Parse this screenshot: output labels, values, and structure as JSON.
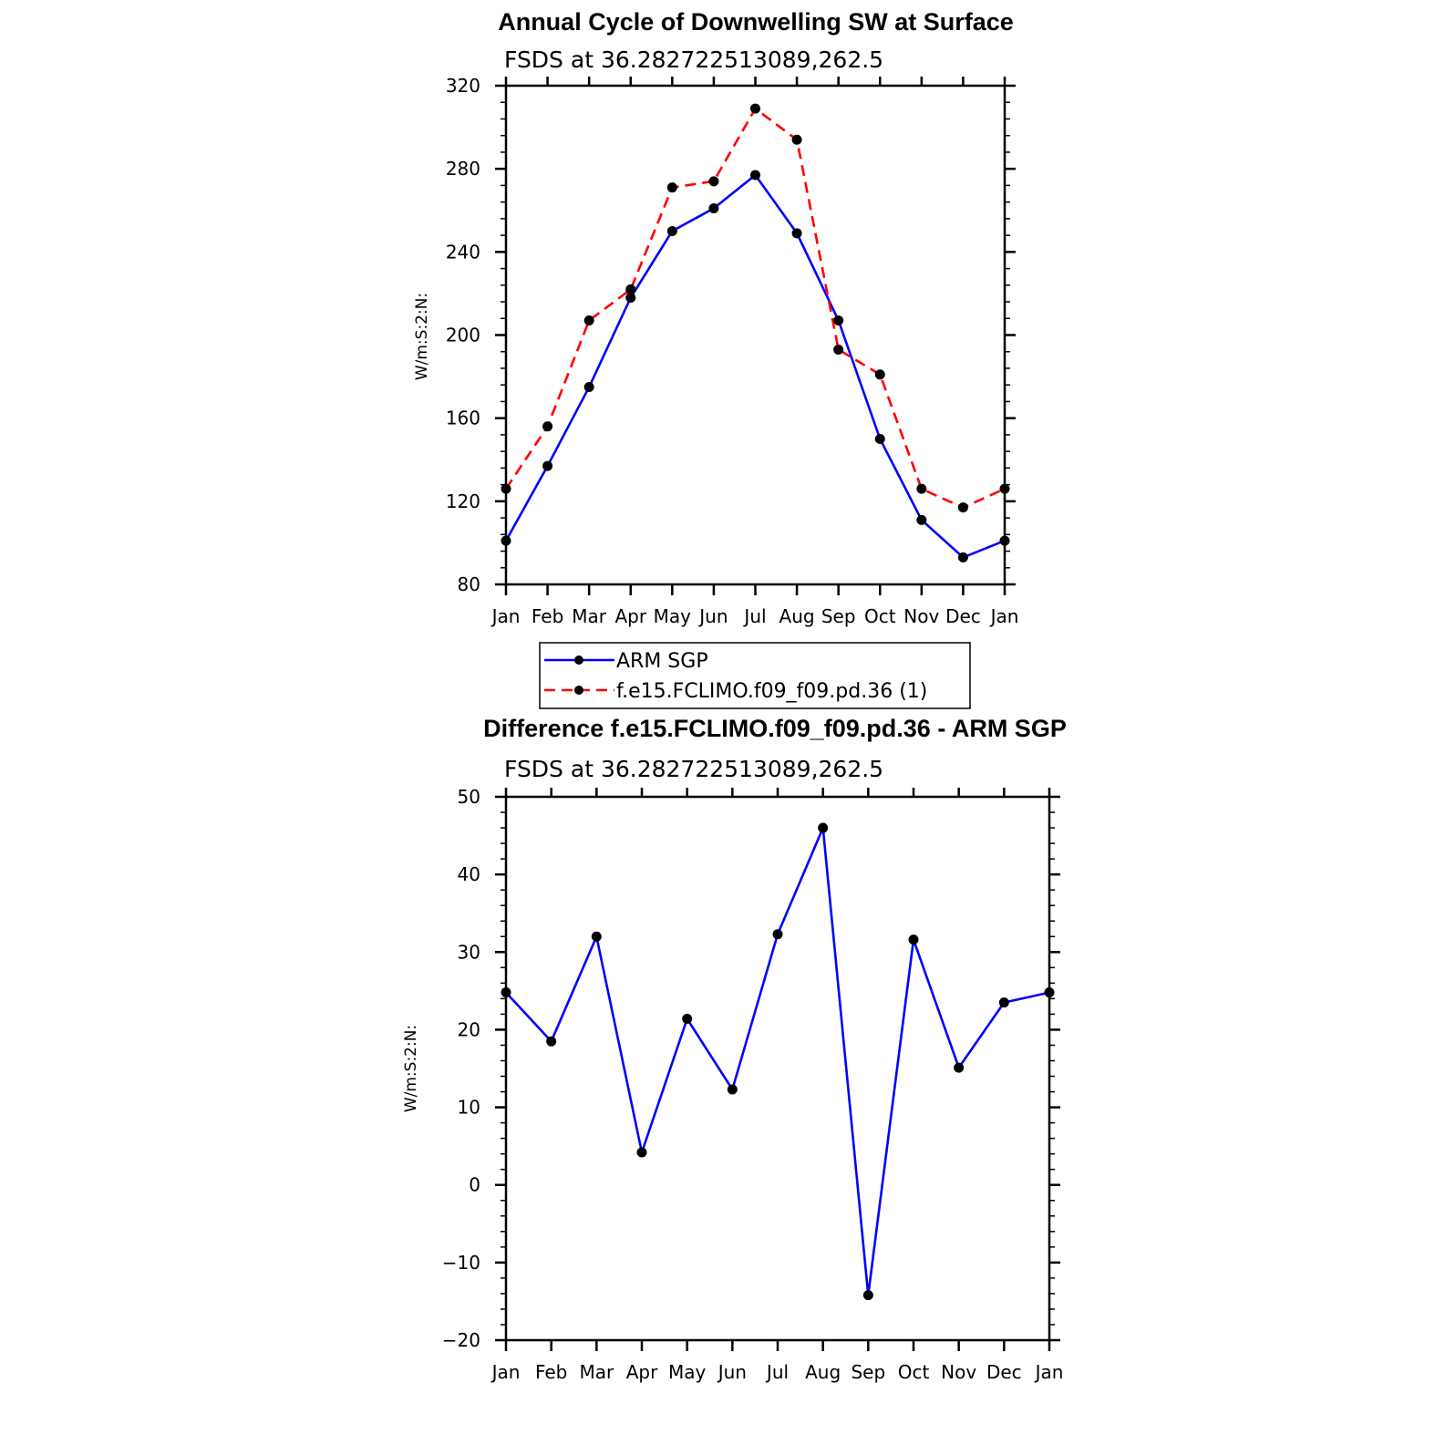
{
  "chart_data": [
    {
      "type": "line",
      "title": "Annual Cycle of Downwelling SW at Surface",
      "subtitle": "FSDS at 36.282722513089,262.5",
      "xlabel": "",
      "ylabel": "W/m:S:2:N:",
      "categories": [
        "Jan",
        "Feb",
        "Mar",
        "Apr",
        "May",
        "Jun",
        "Jul",
        "Aug",
        "Sep",
        "Oct",
        "Nov",
        "Dec",
        "Jan"
      ],
      "ylim": [
        80,
        320
      ],
      "yticks": [
        80,
        120,
        160,
        200,
        240,
        280,
        320
      ],
      "grid": false,
      "legend_position": "bottom",
      "series": [
        {
          "name": "ARM SGP",
          "color": "#0000ff",
          "dash": "solid",
          "values": [
            101,
            137,
            175,
            218,
            250,
            261,
            277,
            249,
            207,
            150,
            111,
            93,
            101
          ]
        },
        {
          "name": "f.e15.FCLIMO.f09_f09.pd.36 (1)",
          "color": "#ff0000",
          "dash": "dashed",
          "values": [
            126,
            156,
            207,
            222,
            271,
            274,
            309,
            294,
            193,
            181,
            126,
            117,
            126
          ]
        }
      ]
    },
    {
      "type": "line",
      "title": "Difference f.e15.FCLIMO.f09_f09.pd.36 - ARM SGP",
      "subtitle": "FSDS at 36.282722513089,262.5",
      "xlabel": "",
      "ylabel": "W/m:S:2:N:",
      "categories": [
        "Jan",
        "Feb",
        "Mar",
        "Apr",
        "May",
        "Jun",
        "Jul",
        "Aug",
        "Sep",
        "Oct",
        "Nov",
        "Dec",
        "Jan"
      ],
      "ylim": [
        -20,
        50
      ],
      "yticks": [
        -20,
        -10,
        0,
        10,
        20,
        30,
        40,
        50
      ],
      "ytick_labels": [
        "−20",
        "−10",
        "0",
        "10",
        "20",
        "30",
        "40",
        "50"
      ],
      "grid": false,
      "series": [
        {
          "name": "Difference",
          "color": "#0000ff",
          "dash": "solid",
          "values": [
            24.8,
            18.5,
            32,
            4.2,
            21.4,
            12.3,
            32.3,
            46,
            -14.2,
            31.6,
            15.1,
            23.5,
            24.8
          ]
        }
      ]
    }
  ]
}
